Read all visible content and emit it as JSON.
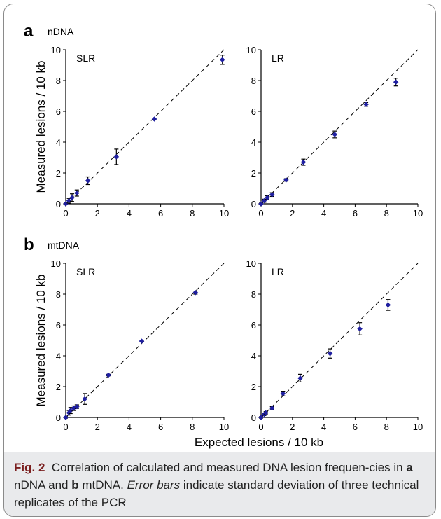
{
  "panels": [
    {
      "letter": "a",
      "label": "nDNA"
    },
    {
      "letter": "b",
      "label": "mtDNA"
    }
  ],
  "shared": {
    "ylabel": "Measured lesions / 10 kb",
    "xlabel": "Expected lesions / 10 kb"
  },
  "caption": {
    "fig_label": "Fig. 2",
    "text_1": "Correlation of calculated and measured DNA lesion frequen-cies in",
    "bold_a": "a",
    "text_2": "nDNA and",
    "bold_b": "b",
    "text_3": "mtDNA.",
    "italic": "Error bars",
    "text_4": "indicate standard deviation of three technical replicates of the PCR"
  },
  "colors": {
    "marker": "#1f1fa0",
    "errorbar": "#000000",
    "reference_line": "#000000"
  },
  "chart_data": [
    {
      "type": "scatter",
      "panel": "a",
      "title": "SLR",
      "xlim": [
        0,
        10
      ],
      "ylim": [
        0,
        10
      ],
      "xticks": [
        0,
        2,
        4,
        6,
        8,
        10
      ],
      "yticks": [
        0,
        2,
        4,
        6,
        8,
        10
      ],
      "reference_line": "y = x (dashed)",
      "x": [
        0,
        0.2,
        0.4,
        0.7,
        1.4,
        3.2,
        5.6,
        9.9
      ],
      "y": [
        0,
        0.2,
        0.4,
        0.7,
        1.5,
        3.05,
        5.5,
        9.35
      ],
      "err": [
        0.05,
        0.15,
        0.25,
        0.2,
        0.25,
        0.5,
        0.05,
        0.3
      ]
    },
    {
      "type": "scatter",
      "panel": "a",
      "title": "LR",
      "xlim": [
        0,
        10
      ],
      "ylim": [
        0,
        10
      ],
      "xticks": [
        0,
        2,
        4,
        6,
        8,
        10
      ],
      "yticks": [
        0,
        2,
        4,
        6,
        8,
        10
      ],
      "reference_line": "y = x (dashed)",
      "x": [
        0,
        0.2,
        0.4,
        0.7,
        1.6,
        2.7,
        4.7,
        6.7,
        8.6
      ],
      "y": [
        0,
        0.2,
        0.4,
        0.6,
        1.55,
        2.7,
        4.5,
        6.45,
        7.9
      ],
      "err": [
        0.05,
        0.1,
        0.12,
        0.12,
        0.08,
        0.2,
        0.22,
        0.12,
        0.25
      ]
    },
    {
      "type": "scatter",
      "panel": "b",
      "title": "SLR",
      "xlim": [
        0,
        10
      ],
      "ylim": [
        0,
        10
      ],
      "xticks": [
        0,
        2,
        4,
        6,
        8,
        10
      ],
      "yticks": [
        0,
        2,
        4,
        6,
        8,
        10
      ],
      "reference_line": "y = x (dashed)",
      "x": [
        0,
        0.2,
        0.3,
        0.5,
        0.7,
        1.2,
        2.7,
        4.8,
        8.2
      ],
      "y": [
        0,
        0.3,
        0.45,
        0.6,
        0.7,
        1.2,
        2.75,
        4.95,
        8.1
      ],
      "err": [
        0.05,
        0.15,
        0.2,
        0.15,
        0.12,
        0.35,
        0.05,
        0.05,
        0.1
      ]
    },
    {
      "type": "scatter",
      "panel": "b",
      "title": "LR",
      "xlim": [
        0,
        10
      ],
      "ylim": [
        0,
        10
      ],
      "xticks": [
        0,
        2,
        4,
        6,
        8,
        10
      ],
      "yticks": [
        0,
        2,
        4,
        6,
        8,
        10
      ],
      "reference_line": "y = x (dashed)",
      "x": [
        0,
        0.2,
        0.3,
        0.7,
        1.4,
        2.5,
        4.4,
        6.3,
        8.1
      ],
      "y": [
        0,
        0.2,
        0.3,
        0.6,
        1.55,
        2.55,
        4.15,
        5.75,
        7.3
      ],
      "err": [
        0.05,
        0.08,
        0.08,
        0.1,
        0.15,
        0.25,
        0.3,
        0.4,
        0.35
      ]
    }
  ]
}
